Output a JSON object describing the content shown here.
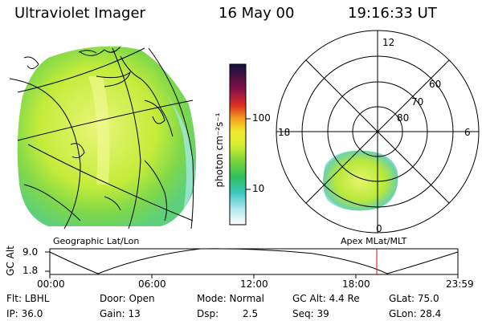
{
  "header": {
    "instrument": "Ultraviolet Imager",
    "date": "16 May 00",
    "time": "19:16:33 UT"
  },
  "colorbar": {
    "unit_label": "photon cm⁻²s⁻¹",
    "tick_100": "100",
    "tick_10": "10"
  },
  "geo_panel": {
    "label": "Geographic Lat/Lon"
  },
  "polar_panel": {
    "label": "Apex MLat/MLT",
    "mlt_top": "12",
    "mlt_left": "18",
    "mlt_right": "6",
    "mlt_bottom": "0",
    "lat_60": "60",
    "lat_70": "70",
    "lat_80": "80"
  },
  "orbit_plot": {
    "ylabel": "GC Alt",
    "ytick_top": "9.0",
    "ytick_bottom": "1.8",
    "xticks": [
      "00:00",
      "06:00",
      "12:00",
      "18:00",
      "23:59"
    ]
  },
  "info": {
    "filter": "Flt: LBHL",
    "door": "Door: Open",
    "mode": "Mode: Normal",
    "gc_alt": "GC Alt: 4.4 Re",
    "glat": "GLat:  75.0",
    "ip": "IP: 36.0",
    "gain": "Gain: 13",
    "dsp_label": "Dsp:",
    "dsp_value": "2.5",
    "seq": "Seq: 39",
    "glon": "GLon:  28.4"
  }
}
